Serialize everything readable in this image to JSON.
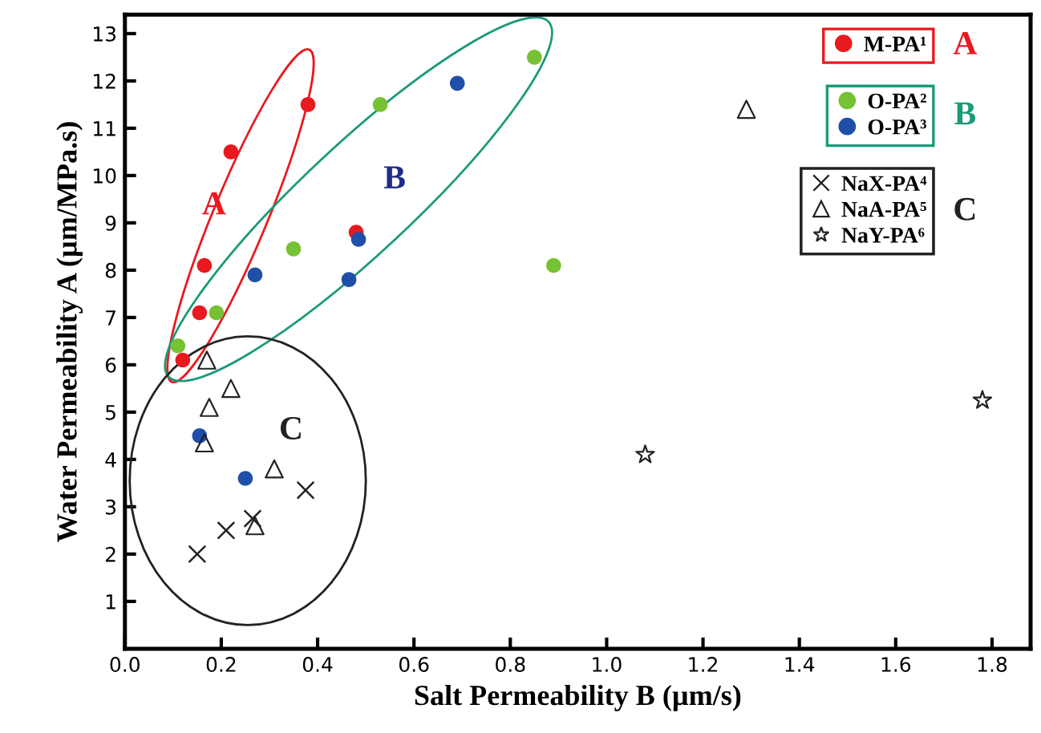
{
  "chart_data": {
    "type": "scatter",
    "xlabel": "Salt Permeability B (µm/s)",
    "ylabel": "Water Permeability A (µm/MPa.s)",
    "xlim": [
      0,
      1.88
    ],
    "ylim": [
      0,
      13.4
    ],
    "xticks": [
      {
        "value": 0,
        "label": "0.0"
      },
      0.2,
      0.4,
      0.6,
      0.8,
      {
        "value": 1,
        "label": "1.0"
      },
      1.2,
      1.4,
      1.6,
      1.8
    ],
    "yticks": [
      1,
      2,
      3,
      4,
      5,
      6,
      7,
      8,
      9,
      10,
      11,
      12,
      13
    ],
    "grid": false,
    "legend": "top right",
    "series": [
      {
        "name": "M-PA¹",
        "color": "#e8191f",
        "marker": "circle",
        "x": [
          0.12,
          0.155,
          0.165,
          0.22,
          0.38,
          0.48
        ],
        "values": [
          6.1,
          7.1,
          8.1,
          10.5,
          11.5,
          8.8
        ]
      },
      {
        "name": "O-PA²",
        "color": "#77c134",
        "marker": "circle",
        "x": [
          0.11,
          0.19,
          0.35,
          0.53,
          0.85,
          0.89
        ],
        "values": [
          6.4,
          7.1,
          8.45,
          11.5,
          12.5,
          8.1
        ]
      },
      {
        "name": "O-PA³",
        "color": "#1f4fa8",
        "marker": "circle",
        "x": [
          0.27,
          0.465,
          0.485,
          0.69,
          0.155,
          0.25
        ],
        "values": [
          7.9,
          7.8,
          8.65,
          11.95,
          4.5,
          3.6
        ]
      },
      {
        "name": "NaX-PA⁴",
        "color": "#222222",
        "marker": "cross",
        "x": [
          0.15,
          0.21,
          0.265,
          0.375
        ],
        "values": [
          2.0,
          2.5,
          2.75,
          3.35
        ]
      },
      {
        "name": "NaA-PA⁵",
        "color": "#222222",
        "marker": "triangle",
        "x": [
          0.17,
          0.22,
          0.175,
          0.165,
          0.31,
          0.27,
          1.29
        ],
        "values": [
          6.1,
          5.5,
          5.1,
          4.35,
          3.8,
          2.6,
          11.4
        ]
      },
      {
        "name": "NaY-PA⁶",
        "color": "#222222",
        "marker": "star",
        "x": [
          1.08,
          1.78
        ],
        "values": [
          4.1,
          5.25
        ]
      }
    ],
    "annotations": [
      "A",
      "B",
      "C",
      "A",
      "B",
      "C"
    ]
  }
}
